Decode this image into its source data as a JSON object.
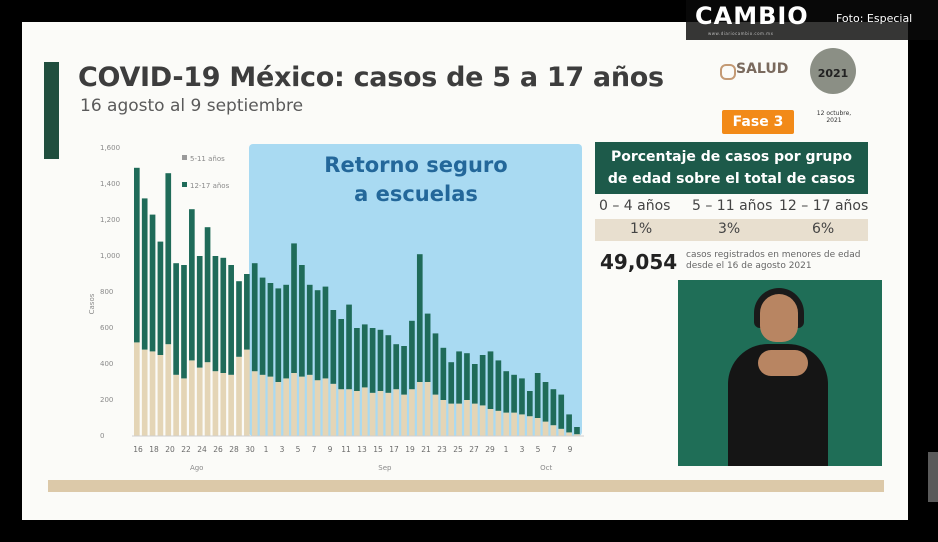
{
  "header": {
    "title": "COVID-19 México: casos de 5 a 17 años",
    "subtitle": "16 agosto al 9 septiembre"
  },
  "watermark": {
    "brand": "CAMBIO",
    "site": "www.diariocambio.com.mx",
    "credit": "Foto: Especial"
  },
  "logos": {
    "gov": "SALUD",
    "seal_year": "2021"
  },
  "phase_badge": "Fase 3",
  "report_date": "12 octubre, 2021",
  "highlight": {
    "text_line1": "Retorno seguro",
    "text_line2": "a escuelas",
    "color": "#a9daf2"
  },
  "table": {
    "title_line1": "Porcentaje de casos por grupo",
    "title_line2": "de edad sobre el total de casos",
    "categories": [
      "0 – 4 años",
      "5 – 11 años",
      "12 – 17 años"
    ],
    "percents": [
      "1%",
      "3%",
      "6%"
    ]
  },
  "total": {
    "value": "49,054",
    "note": "casos registrados en menores de edad desde el 16 de agosto 2021"
  },
  "colors": {
    "series_12_17": "#1f6b59",
    "series_5_11": "#e4d5b6",
    "header_green": "#1d5a4a",
    "badge_orange": "#f28a18"
  },
  "chart_data": {
    "type": "bar",
    "stacked": true,
    "ylabel": "Casos",
    "ylim": [
      0,
      1600
    ],
    "yticks": [
      "1,600",
      "1,400",
      "1,200",
      "1,000",
      "800",
      "600",
      "400",
      "200",
      "0"
    ],
    "xtick_labels": [
      "16",
      "18",
      "20",
      "22",
      "24",
      "26",
      "28",
      "30",
      "1",
      "3",
      "5",
      "7",
      "9",
      "11",
      "13",
      "15",
      "17",
      "19",
      "21",
      "23",
      "25",
      "27",
      "29",
      "1",
      "3",
      "5",
      "7",
      "9"
    ],
    "month_labels": [
      "Ago",
      "Sep",
      "Oct"
    ],
    "legend": [
      "5-11 años",
      "12-17 años"
    ],
    "series": [
      {
        "name": "5-11 años",
        "values": [
          520,
          480,
          470,
          450,
          510,
          340,
          320,
          420,
          380,
          410,
          360,
          350,
          340,
          440,
          480,
          360,
          340,
          330,
          300,
          320,
          350,
          330,
          340,
          310,
          320,
          290,
          260,
          260,
          250,
          270,
          240,
          250,
          240,
          260,
          230,
          260,
          300,
          300,
          230,
          200,
          180,
          180,
          200,
          180,
          170,
          150,
          140,
          130,
          130,
          120,
          110,
          100,
          80,
          60,
          40,
          20,
          10
        ]
      },
      {
        "name": "12-17 años",
        "values": [
          970,
          840,
          760,
          630,
          950,
          620,
          630,
          840,
          620,
          750,
          640,
          640,
          610,
          420,
          420,
          600,
          540,
          520,
          520,
          520,
          720,
          620,
          500,
          500,
          510,
          410,
          390,
          470,
          350,
          350,
          360,
          340,
          320,
          250,
          270,
          380,
          710,
          380,
          340,
          290,
          230,
          290,
          260,
          220,
          280,
          320,
          280,
          230,
          210,
          200,
          140,
          250,
          220,
          200,
          190,
          100,
          40
        ]
      }
    ]
  }
}
